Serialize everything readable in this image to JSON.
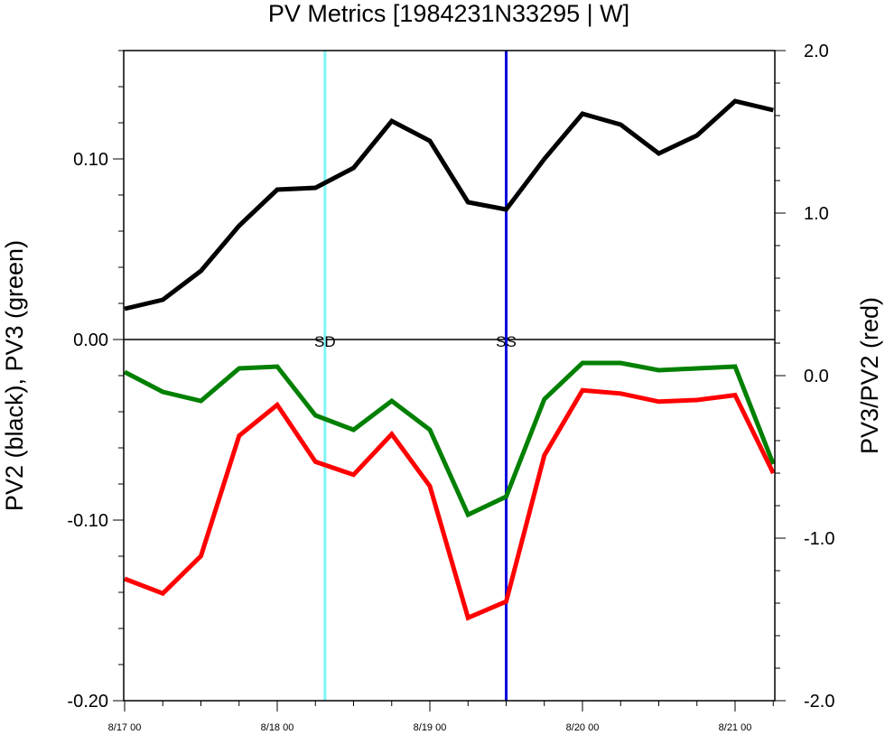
{
  "chart_data": {
    "type": "line",
    "title": "PV Metrics [1984231N33295 | W]",
    "ylabel_left": "PV2 (black), PV3 (green)",
    "ylabel_right": "PV3/PV2 (red)",
    "x": [
      "8/17 00",
      "8/17 06",
      "8/17 12",
      "8/17 18",
      "8/18 00",
      "8/18 06",
      "8/18 12",
      "8/18 18",
      "8/19 00",
      "8/19 06",
      "8/19 12",
      "8/19 18",
      "8/20 00",
      "8/20 06",
      "8/20 12",
      "8/20 18",
      "8/21 00",
      "8/21 06"
    ],
    "x_tick_labels": [
      "8/17 00",
      "8/18 00",
      "8/19 00",
      "8/20 00",
      "8/21 00"
    ],
    "ylim_left": [
      -0.2,
      0.16
    ],
    "yticks_left": [
      "0.10",
      "0.00",
      "-0.10",
      "-0.20"
    ],
    "ylim_right": [
      -2.0,
      2.0
    ],
    "yticks_right": [
      "2.0",
      "1.0",
      "0.0",
      "-1.0",
      "-2.0"
    ],
    "series": [
      {
        "name": "PV2",
        "axis": "left",
        "color": "#000000",
        "values": [
          0.017,
          0.022,
          0.038,
          0.063,
          0.083,
          0.084,
          0.095,
          0.121,
          0.11,
          0.076,
          0.072,
          0.1,
          0.125,
          0.119,
          0.103,
          0.113,
          0.132,
          0.127
        ]
      },
      {
        "name": "PV3",
        "axis": "left",
        "color": "#008000",
        "values": [
          -0.018,
          -0.029,
          -0.034,
          -0.016,
          -0.015,
          -0.042,
          -0.05,
          -0.034,
          -0.05,
          -0.097,
          -0.087,
          -0.033,
          -0.013,
          -0.013,
          -0.017,
          -0.016,
          -0.015,
          -0.069
        ]
      },
      {
        "name": "PV3/PV2",
        "axis": "right",
        "color": "#ff0000",
        "values": [
          -1.25,
          -1.34,
          -1.11,
          -0.37,
          -0.18,
          -0.53,
          -0.61,
          -0.36,
          -0.68,
          -1.49,
          -1.39,
          -0.49,
          -0.09,
          -0.11,
          -0.16,
          -0.15,
          -0.12,
          -0.6
        ]
      }
    ],
    "markers": [
      {
        "label": "SD",
        "x_index": 5.25,
        "color": "#7ff5f5"
      },
      {
        "label": "SS",
        "x_index": 10,
        "color": "#0000dd"
      }
    ]
  }
}
